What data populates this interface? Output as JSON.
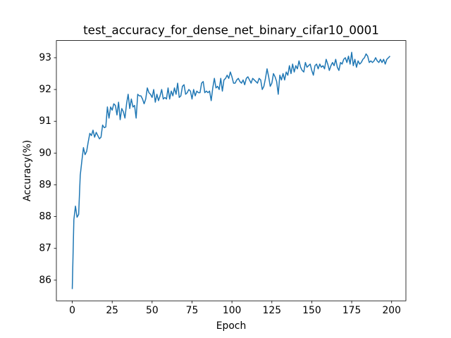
{
  "chart_data": {
    "type": "line",
    "title": "test_accuracy_for_dense_net_binary_cifar10_0001",
    "x_label": "Epoch",
    "y_label": "Accuracy(%)",
    "x": [
      0,
      1,
      2,
      3,
      4,
      5,
      6,
      7,
      8,
      9,
      10,
      11,
      12,
      13,
      14,
      15,
      16,
      17,
      18,
      19,
      20,
      21,
      22,
      23,
      24,
      25,
      26,
      27,
      28,
      29,
      30,
      31,
      32,
      33,
      34,
      35,
      36,
      37,
      38,
      39,
      40,
      41,
      42,
      43,
      44,
      45,
      46,
      47,
      48,
      49,
      50,
      51,
      52,
      53,
      54,
      55,
      56,
      57,
      58,
      59,
      60,
      61,
      62,
      63,
      64,
      65,
      66,
      67,
      68,
      69,
      70,
      71,
      72,
      73,
      74,
      75,
      76,
      77,
      78,
      79,
      80,
      81,
      82,
      83,
      84,
      85,
      86,
      87,
      88,
      89,
      90,
      91,
      92,
      93,
      94,
      95,
      96,
      97,
      98,
      99,
      100,
      101,
      102,
      103,
      104,
      105,
      106,
      107,
      108,
      109,
      110,
      111,
      112,
      113,
      114,
      115,
      116,
      117,
      118,
      119,
      120,
      121,
      122,
      123,
      124,
      125,
      126,
      127,
      128,
      129,
      130,
      131,
      132,
      133,
      134,
      135,
      136,
      137,
      138,
      139,
      140,
      141,
      142,
      143,
      144,
      145,
      146,
      147,
      148,
      149,
      150,
      151,
      152,
      153,
      154,
      155,
      156,
      157,
      158,
      159,
      160,
      161,
      162,
      163,
      164,
      165,
      166,
      167,
      168,
      169,
      170,
      171,
      172,
      173,
      174,
      175,
      176,
      177,
      178,
      179,
      180,
      181,
      182,
      183,
      184,
      185,
      186,
      187,
      188,
      189,
      190,
      191,
      192,
      193,
      194,
      195,
      196,
      197,
      198,
      199
    ],
    "series": [
      {
        "color": "#1f77b4",
        "values": [
          85.72,
          87.9,
          88.33,
          87.98,
          88.07,
          89.3,
          89.75,
          90.17,
          89.95,
          90.05,
          90.35,
          90.62,
          90.55,
          90.72,
          90.5,
          90.65,
          90.55,
          90.45,
          90.5,
          90.88,
          90.8,
          90.82,
          91.45,
          91.1,
          91.45,
          91.35,
          91.55,
          91.5,
          91.2,
          91.6,
          91.05,
          91.4,
          91.3,
          91.1,
          91.55,
          91.85,
          91.4,
          91.7,
          91.45,
          91.5,
          91.1,
          91.85,
          91.8,
          91.8,
          91.7,
          91.55,
          91.7,
          92.05,
          91.9,
          91.85,
          91.75,
          92.0,
          91.6,
          91.85,
          91.65,
          91.8,
          92.0,
          91.7,
          91.75,
          91.7,
          92.05,
          91.7,
          91.95,
          91.8,
          92.05,
          91.85,
          92.2,
          91.75,
          91.8,
          92.1,
          92.15,
          91.85,
          91.9,
          92.0,
          91.95,
          91.7,
          92.0,
          91.8,
          91.95,
          91.9,
          91.9,
          92.2,
          92.25,
          91.9,
          91.95,
          91.9,
          91.95,
          91.65,
          92.05,
          92.35,
          92.05,
          92.1,
          92.0,
          92.35,
          91.95,
          92.3,
          92.35,
          92.45,
          92.35,
          92.55,
          92.4,
          92.2,
          92.2,
          92.3,
          92.35,
          92.25,
          92.2,
          92.3,
          92.15,
          92.35,
          92.4,
          92.3,
          92.2,
          92.35,
          92.3,
          92.25,
          92.2,
          92.35,
          92.3,
          92.0,
          92.1,
          92.35,
          92.65,
          92.4,
          92.1,
          92.2,
          92.5,
          92.4,
          92.25,
          91.85,
          92.45,
          92.3,
          92.5,
          92.3,
          92.55,
          92.45,
          92.75,
          92.5,
          92.8,
          92.55,
          92.75,
          92.65,
          92.9,
          92.7,
          92.6,
          92.55,
          92.85,
          92.7,
          92.75,
          92.8,
          92.6,
          92.45,
          92.75,
          92.8,
          92.65,
          92.8,
          92.7,
          92.75,
          92.65,
          92.95,
          92.8,
          92.6,
          92.75,
          92.85,
          92.75,
          92.95,
          92.7,
          92.6,
          92.85,
          92.8,
          92.95,
          93.0,
          92.85,
          93.05,
          92.8,
          93.17,
          92.75,
          92.95,
          92.7,
          92.9,
          92.8,
          92.85,
          92.95,
          93.0,
          93.12,
          93.05,
          92.85,
          92.9,
          92.85,
          92.9,
          93.0,
          92.9,
          92.85,
          92.95,
          92.85,
          92.95,
          92.8,
          92.95,
          93.0,
          93.05
        ]
      }
    ],
    "xlim": [
      -9.95,
      208.95
    ],
    "ylim": [
      85.35,
      93.54
    ],
    "xticks": [
      0,
      25,
      50,
      75,
      100,
      125,
      150,
      175,
      200
    ],
    "yticks": [
      86,
      87,
      88,
      89,
      90,
      91,
      92,
      93
    ]
  }
}
